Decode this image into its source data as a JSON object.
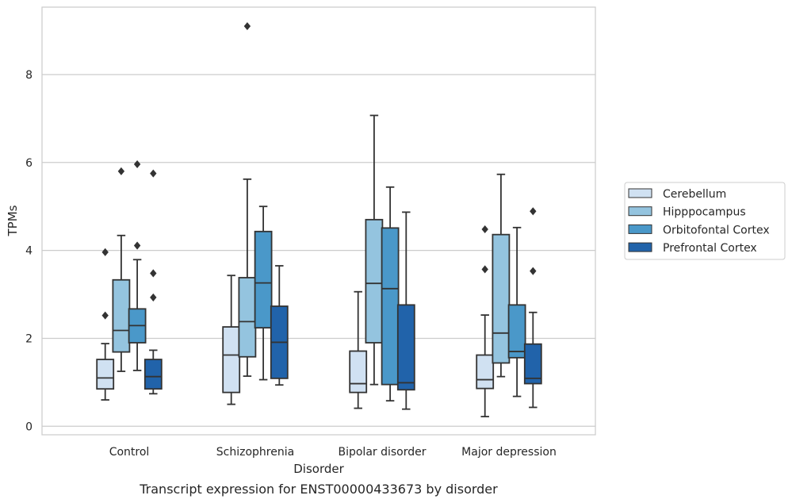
{
  "caption": "Transcript expression for ENST00000433673 by disorder",
  "chart_data": {
    "type": "box",
    "xlabel": "Disorder",
    "ylabel": "TPMs",
    "ylim": [
      -0.2,
      9.6
    ],
    "yticks": [
      0,
      2,
      4,
      6,
      8
    ],
    "grid": "horizontal",
    "legend_position": "right",
    "categories": [
      "Control",
      "Schizophrenia",
      "Bipolar disorder",
      "Major depression"
    ],
    "series": [
      {
        "name": "Cerebellum",
        "color": "#d0e1f2",
        "boxes": [
          {
            "whisker_low": 0.6,
            "q1": 0.85,
            "median": 1.1,
            "q3": 1.52,
            "whisker_high": 1.88,
            "outliers": [
              2.52,
              3.96
            ]
          },
          {
            "whisker_low": 0.5,
            "q1": 0.77,
            "median": 1.62,
            "q3": 2.26,
            "whisker_high": 3.43,
            "outliers": []
          },
          {
            "whisker_low": 0.41,
            "q1": 0.77,
            "median": 0.97,
            "q3": 1.71,
            "whisker_high": 3.06,
            "outliers": []
          },
          {
            "whisker_low": 0.22,
            "q1": 0.86,
            "median": 1.06,
            "q3": 1.62,
            "whisker_high": 2.53,
            "outliers": [
              3.57,
              4.48
            ]
          }
        ]
      },
      {
        "name": "Hipppocampus",
        "color": "#94c4df",
        "boxes": [
          {
            "whisker_low": 1.25,
            "q1": 1.69,
            "median": 2.18,
            "q3": 3.33,
            "whisker_high": 4.34,
            "outliers": [
              5.8
            ]
          },
          {
            "whisker_low": 1.14,
            "q1": 1.58,
            "median": 2.38,
            "q3": 3.38,
            "whisker_high": 5.62,
            "outliers": [
              9.1
            ]
          },
          {
            "whisker_low": 0.95,
            "q1": 1.9,
            "median": 3.25,
            "q3": 4.7,
            "whisker_high": 7.07,
            "outliers": []
          },
          {
            "whisker_low": 1.13,
            "q1": 1.44,
            "median": 2.12,
            "q3": 4.36,
            "whisker_high": 5.73,
            "outliers": []
          }
        ]
      },
      {
        "name": "Orbitofontal Cortex",
        "color": "#4a98c9",
        "boxes": [
          {
            "whisker_low": 1.27,
            "q1": 1.9,
            "median": 2.29,
            "q3": 2.67,
            "whisker_high": 3.79,
            "outliers": [
              4.11,
              5.96
            ]
          },
          {
            "whisker_low": 1.06,
            "q1": 2.24,
            "median": 3.26,
            "q3": 4.43,
            "whisker_high": 5.0,
            "outliers": []
          },
          {
            "whisker_low": 0.58,
            "q1": 0.95,
            "median": 3.13,
            "q3": 4.51,
            "whisker_high": 5.44,
            "outliers": []
          },
          {
            "whisker_low": 0.68,
            "q1": 1.56,
            "median": 1.7,
            "q3": 2.76,
            "whisker_high": 4.52,
            "outliers": []
          }
        ]
      },
      {
        "name": "Prefrontal Cortex",
        "color": "#2163aa",
        "boxes": [
          {
            "whisker_low": 0.74,
            "q1": 0.85,
            "median": 1.13,
            "q3": 1.52,
            "whisker_high": 1.73,
            "outliers": [
              2.93,
              3.48,
              5.75
            ]
          },
          {
            "whisker_low": 0.94,
            "q1": 1.09,
            "median": 1.91,
            "q3": 2.73,
            "whisker_high": 3.65,
            "outliers": []
          },
          {
            "whisker_low": 0.39,
            "q1": 0.83,
            "median": 0.99,
            "q3": 2.76,
            "whisker_high": 4.87,
            "outliers": []
          },
          {
            "whisker_low": 0.43,
            "q1": 0.97,
            "median": 1.09,
            "q3": 1.87,
            "whisker_high": 2.59,
            "outliers": [
              3.53,
              4.89
            ]
          }
        ]
      }
    ]
  }
}
